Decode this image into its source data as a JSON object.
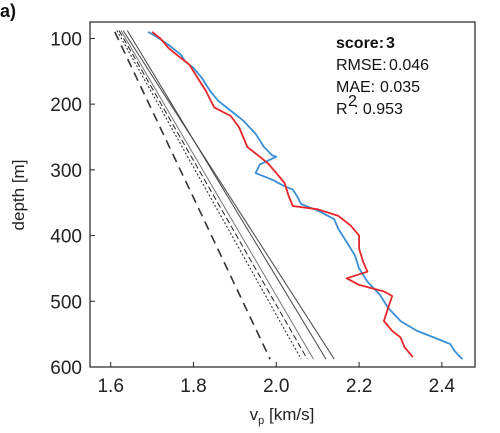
{
  "chart_data": {
    "type": "line",
    "panel_label": "a)",
    "xlabel": "v",
    "xlabel_sub": "p",
    "xlabel_unit": " [km/s]",
    "ylabel": "depth [m]",
    "xlim": [
      1.55,
      2.48
    ],
    "ylim": [
      600,
      75
    ],
    "xticks": [
      1.6,
      1.8,
      2.0,
      2.2,
      2.4
    ],
    "yticks": [
      100,
      200,
      300,
      400,
      500,
      600
    ],
    "stats": {
      "score_label": "score:",
      "score_value": "3",
      "rmse_label": "RMSE:",
      "rmse_value": "0.046",
      "mae_label": "MAE:",
      "mae_value": "0.035",
      "r2_label": "R",
      "r2_sup": "2",
      "r2_value": ": 0.953"
    },
    "series": [
      {
        "color": "#3a8fd6",
        "dash": "",
        "width": 1.8,
        "points": [
          [
            1.69,
            90
          ],
          [
            1.71,
            97
          ],
          [
            1.74,
            110
          ],
          [
            1.77,
            125
          ],
          [
            1.78,
            135
          ],
          [
            1.8,
            145
          ],
          [
            1.82,
            160
          ],
          [
            1.84,
            180
          ],
          [
            1.86,
            195
          ],
          [
            1.9,
            215
          ],
          [
            1.92,
            225
          ],
          [
            1.95,
            245
          ],
          [
            1.97,
            265
          ],
          [
            1.99,
            278
          ],
          [
            2.0,
            280
          ],
          [
            1.96,
            292
          ],
          [
            1.95,
            305
          ],
          [
            1.99,
            315
          ],
          [
            2.02,
            325
          ],
          [
            2.04,
            330
          ],
          [
            2.05,
            340
          ],
          [
            2.06,
            352
          ],
          [
            2.1,
            362
          ],
          [
            2.14,
            375
          ],
          [
            2.15,
            390
          ],
          [
            2.17,
            410
          ],
          [
            2.19,
            430
          ],
          [
            2.2,
            450
          ],
          [
            2.22,
            470
          ],
          [
            2.25,
            490
          ],
          [
            2.27,
            510
          ],
          [
            2.3,
            530
          ],
          [
            2.34,
            545
          ],
          [
            2.38,
            555
          ],
          [
            2.42,
            565
          ],
          [
            2.43,
            575
          ],
          [
            2.44,
            582
          ],
          [
            2.45,
            588
          ]
        ]
      },
      {
        "color": "#e8252a",
        "dash": "",
        "width": 1.8,
        "points": [
          [
            1.7,
            90
          ],
          [
            1.72,
            100
          ],
          [
            1.74,
            115
          ],
          [
            1.76,
            125
          ],
          [
            1.79,
            140
          ],
          [
            1.81,
            160
          ],
          [
            1.83,
            180
          ],
          [
            1.85,
            205
          ],
          [
            1.89,
            218
          ],
          [
            1.91,
            235
          ],
          [
            1.92,
            250
          ],
          [
            1.93,
            265
          ],
          [
            1.95,
            275
          ],
          [
            1.98,
            290
          ],
          [
            2.0,
            305
          ],
          [
            2.02,
            320
          ],
          [
            2.03,
            340
          ],
          [
            2.04,
            355
          ],
          [
            2.1,
            360
          ],
          [
            2.15,
            370
          ],
          [
            2.18,
            385
          ],
          [
            2.2,
            400
          ],
          [
            2.2,
            420
          ],
          [
            2.21,
            440
          ],
          [
            2.22,
            455
          ],
          [
            2.17,
            465
          ],
          [
            2.2,
            475
          ],
          [
            2.26,
            485
          ],
          [
            2.28,
            492
          ],
          [
            2.27,
            510
          ],
          [
            2.26,
            530
          ],
          [
            2.28,
            545
          ],
          [
            2.3,
            555
          ],
          [
            2.31,
            570
          ],
          [
            2.33,
            585
          ]
        ]
      },
      {
        "color": "#333333",
        "dash": "9,6",
        "width": 1.6,
        "points": [
          [
            1.61,
            90
          ],
          [
            1.985,
            588
          ]
        ]
      },
      {
        "color": "#555555",
        "dash": "",
        "width": 1.1,
        "points": [
          [
            1.63,
            88
          ],
          [
            2.14,
            588
          ]
        ]
      },
      {
        "color": "#777777",
        "dash": "",
        "width": 1.0,
        "points": [
          [
            1.625,
            88
          ],
          [
            2.09,
            588
          ]
        ]
      },
      {
        "color": "#333333",
        "dash": "2,2",
        "width": 1.1,
        "points": [
          [
            1.615,
            88
          ],
          [
            2.06,
            588
          ]
        ]
      },
      {
        "color": "#222222",
        "dash": "6,3",
        "width": 1.0,
        "points": [
          [
            1.62,
            88
          ],
          [
            2.075,
            588
          ]
        ]
      },
      {
        "color": "#444444",
        "dash": "",
        "width": 1.0,
        "points": [
          [
            1.64,
            88
          ],
          [
            2.12,
            588
          ]
        ]
      }
    ]
  }
}
